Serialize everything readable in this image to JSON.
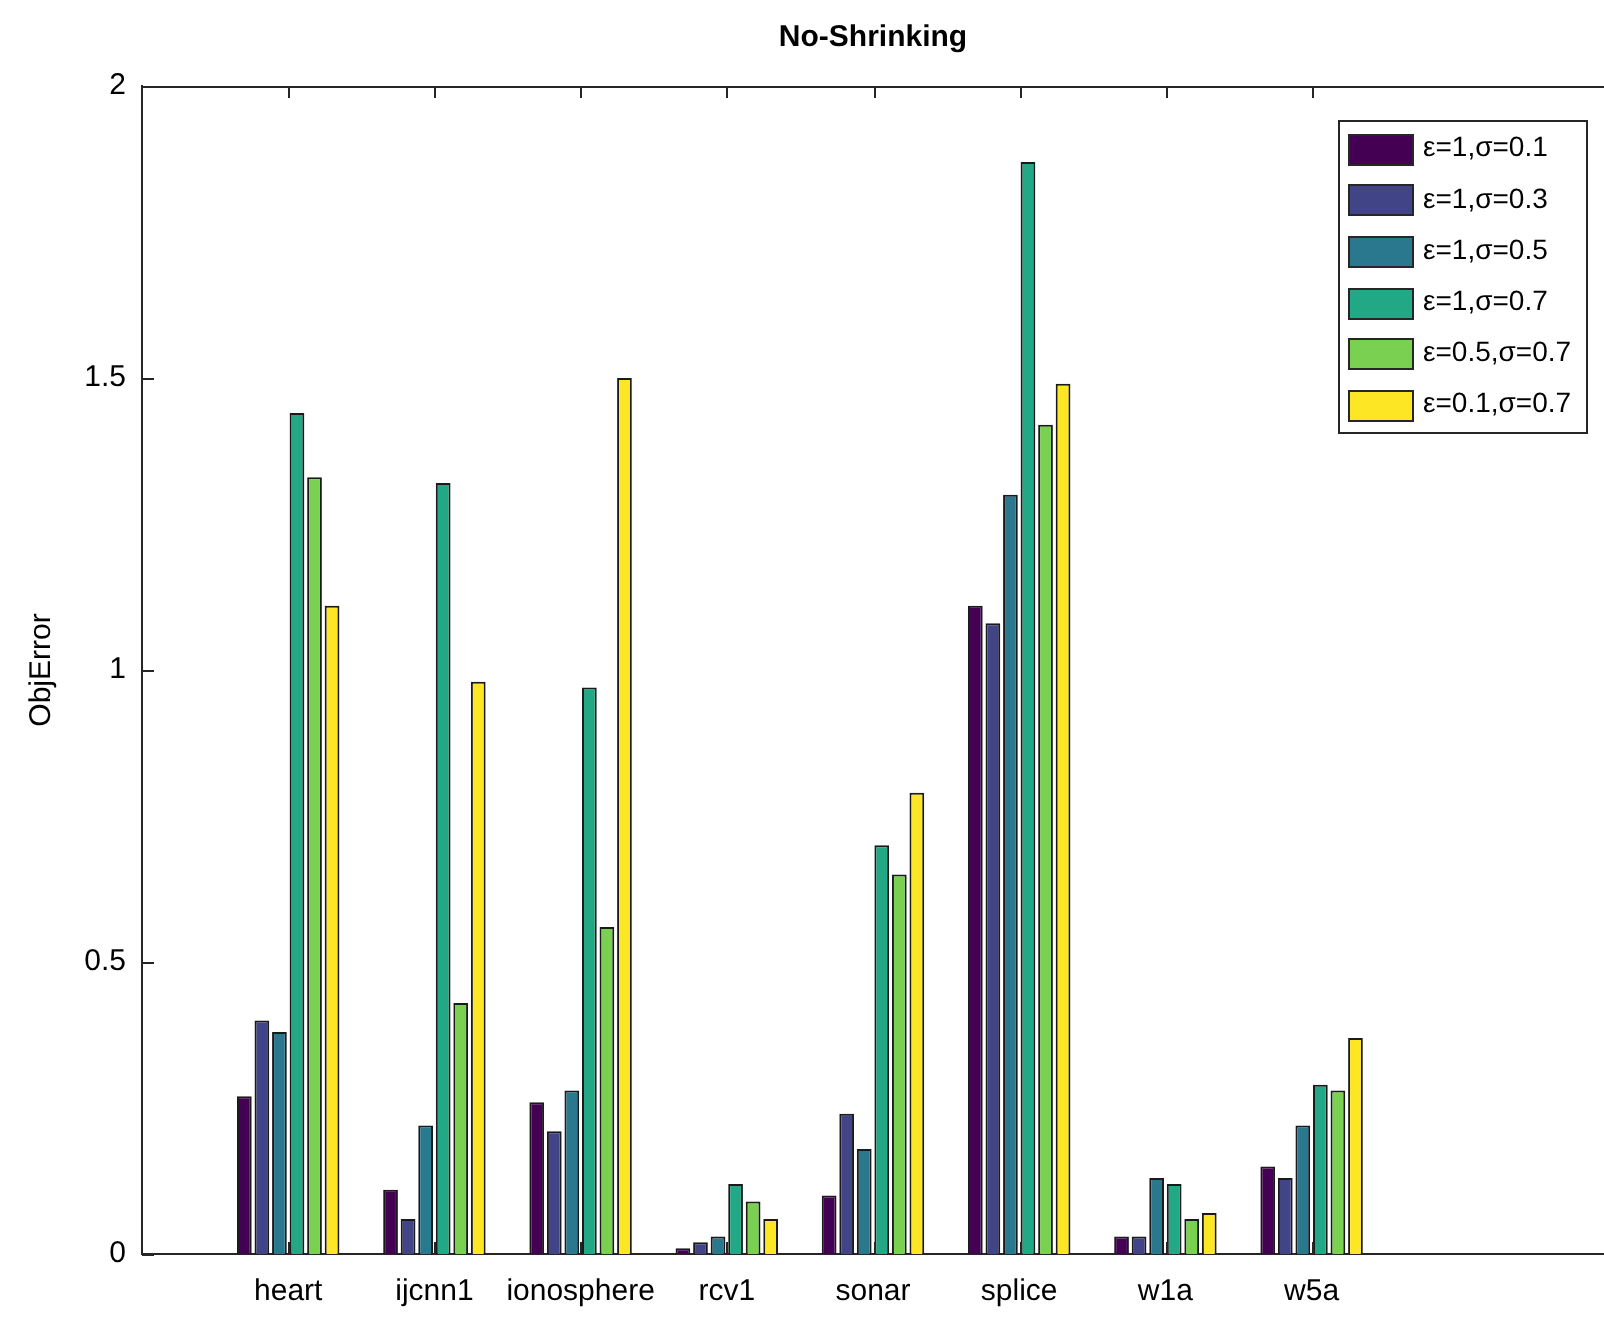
{
  "chart_data": {
    "type": "bar",
    "title": "No-Shrinking",
    "ylabel": "ObjError",
    "categories": [
      null,
      "heart",
      "ijcnn1",
      "ionosphere",
      "rcv1",
      "sonar",
      "splice",
      "w1a",
      "w5a",
      null,
      null
    ],
    "series": [
      {
        "name": "ε=1,σ=0.1",
        "color": "#440154",
        "values": [
          null,
          0.27,
          0.11,
          0.26,
          0.01,
          0.1,
          1.11,
          0.03,
          0.15,
          null,
          null
        ]
      },
      {
        "name": "ε=1,σ=0.3",
        "color": "#414487",
        "values": [
          null,
          0.4,
          0.06,
          0.21,
          0.02,
          0.24,
          1.08,
          0.03,
          0.13,
          null,
          null
        ]
      },
      {
        "name": "ε=1,σ=0.5",
        "color": "#2a788e",
        "values": [
          null,
          0.38,
          0.22,
          0.28,
          0.03,
          0.18,
          1.3,
          0.13,
          0.22,
          null,
          null
        ]
      },
      {
        "name": "ε=1,σ=0.7",
        "color": "#22a884",
        "values": [
          null,
          1.44,
          1.32,
          0.97,
          0.12,
          0.7,
          1.87,
          0.12,
          0.29,
          null,
          null
        ]
      },
      {
        "name": "ε=0.5,σ=0.7",
        "color": "#7ad151",
        "values": [
          null,
          1.33,
          0.43,
          0.56,
          0.09,
          0.65,
          1.42,
          0.06,
          0.28,
          null,
          null
        ]
      },
      {
        "name": "ε=0.1,σ=0.7",
        "color": "#fde725",
        "values": [
          null,
          1.11,
          0.98,
          1.5,
          0.06,
          0.79,
          1.49,
          0.07,
          0.37,
          null,
          null
        ]
      }
    ],
    "ylim": [
      0,
      2
    ],
    "yticks": [
      0,
      0.5,
      1,
      1.5,
      2
    ],
    "legend": "top right"
  }
}
